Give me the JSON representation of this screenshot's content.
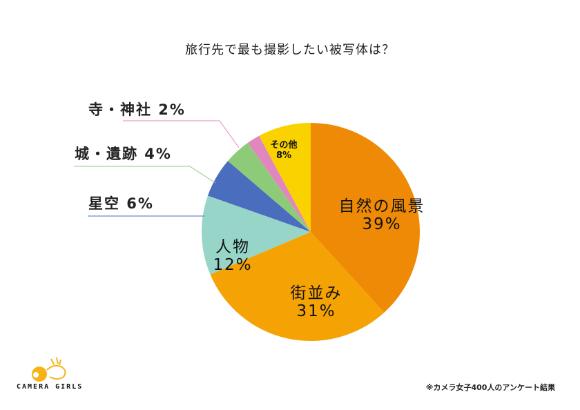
{
  "chart_data": {
    "type": "pie",
    "title": "旅行先で最も撮影したい被写体は？",
    "start_angle_deg": 0,
    "direction": "clockwise",
    "slices": [
      {
        "label": "自然の風景",
        "value": 39,
        "display": "39%",
        "color": "#EE8A05"
      },
      {
        "label": "街並み",
        "value": 31,
        "display": "31%",
        "color": "#F5A204"
      },
      {
        "label": "人物",
        "value": 12,
        "display": "12%",
        "color": "#97D5C9"
      },
      {
        "label": "星空",
        "value": 6,
        "display": "6%",
        "color": "#4A6DBE"
      },
      {
        "label": "城・遺跡",
        "value": 4,
        "display": "4%",
        "color": "#8ECB78"
      },
      {
        "label": "寺・神社",
        "value": 2,
        "display": "2%",
        "color": "#E088BE"
      },
      {
        "label": "その他",
        "value": 8,
        "display": "8%",
        "color": "#FAD200"
      }
    ],
    "legend": "none (labels on slices / leader lines)",
    "source_note": "※カメラ女子400人のアンケート結果"
  },
  "labels": {
    "nature_name": "自然の風景",
    "nature_pct": "39%",
    "street_name": "街並み",
    "street_pct": "31%",
    "people_name": "人物",
    "people_pct": "12%",
    "other_name": "その他",
    "other_pct": "8%",
    "stars": "星空 6%",
    "castle": "城・遺跡 4%",
    "temple": "寺・神社 2%"
  },
  "footer": {
    "note": "※カメラ女子400人のアンケート結果",
    "logo_text": "CAMERA GIRLS"
  }
}
